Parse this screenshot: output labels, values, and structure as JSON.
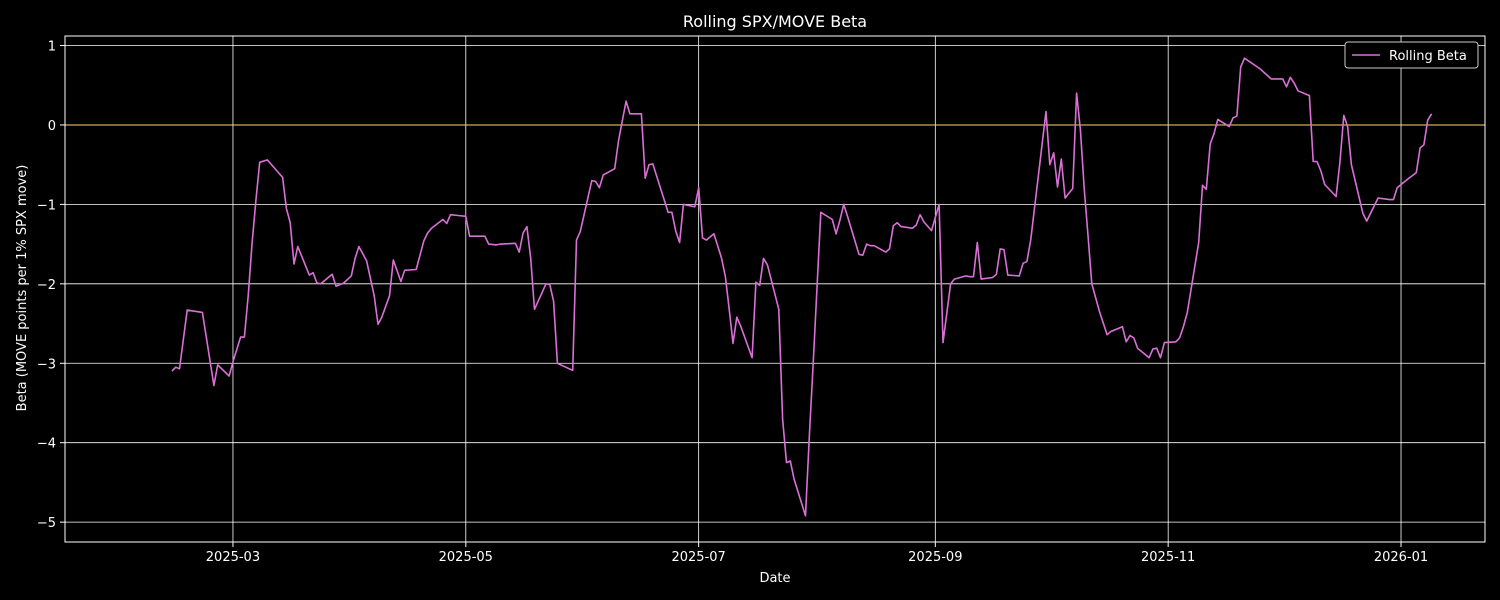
{
  "chart_data": {
    "type": "line",
    "title": "Rolling SPX/MOVE Beta",
    "xlabel": "Date",
    "ylabel": "Beta (MOVE points per 1% SPX move)",
    "xlim": [
      "2025-01-16",
      "2026-01-23"
    ],
    "ylim": [
      -5.25,
      1.12
    ],
    "x_ticks": [
      {
        "date": "2025-03-01",
        "label": "2025-03"
      },
      {
        "date": "2025-05-01",
        "label": "2025-05"
      },
      {
        "date": "2025-07-01",
        "label": "2025-07"
      },
      {
        "date": "2025-09-01",
        "label": "2025-09"
      },
      {
        "date": "2025-11-01",
        "label": "2025-11"
      },
      {
        "date": "2026-01-01",
        "label": "2026-01"
      }
    ],
    "y_ticks": [
      {
        "value": 1,
        "label": "1"
      },
      {
        "value": 0,
        "label": "0"
      },
      {
        "value": -1,
        "label": "−1"
      },
      {
        "value": -2,
        "label": "−2"
      },
      {
        "value": -3,
        "label": "−3"
      },
      {
        "value": -4,
        "label": "−4"
      },
      {
        "value": -5,
        "label": "−5"
      }
    ],
    "grid": true,
    "zero_line": {
      "value": 0,
      "color": "#ffd966"
    },
    "legend": {
      "position": "top-right",
      "entries": [
        "Rolling Beta"
      ]
    },
    "series": [
      {
        "name": "Rolling Beta",
        "color": "#da70d6",
        "x": [
          "2025-02-13",
          "2025-02-14",
          "2025-02-15",
          "2025-02-17",
          "2025-02-21",
          "2025-02-24",
          "2025-02-25",
          "2025-02-28",
          "2025-03-01",
          "2025-03-03",
          "2025-03-04",
          "2025-03-05",
          "2025-03-06",
          "2025-03-07",
          "2025-03-08",
          "2025-03-10",
          "2025-03-14",
          "2025-03-15",
          "2025-03-16",
          "2025-03-17",
          "2025-03-18",
          "2025-03-21",
          "2025-03-22",
          "2025-03-23",
          "2025-03-24",
          "2025-03-27",
          "2025-03-28",
          "2025-03-30",
          "2025-04-01",
          "2025-04-02",
          "2025-04-03",
          "2025-04-05",
          "2025-04-07",
          "2025-04-08",
          "2025-04-09",
          "2025-04-11",
          "2025-04-12",
          "2025-04-14",
          "2025-04-15",
          "2025-04-18",
          "2025-04-20",
          "2025-04-21",
          "2025-04-22",
          "2025-04-25",
          "2025-04-26",
          "2025-04-27",
          "2025-04-29",
          "2025-05-01",
          "2025-05-02",
          "2025-05-06",
          "2025-05-07",
          "2025-05-09",
          "2025-05-10",
          "2025-05-14",
          "2025-05-15",
          "2025-05-16",
          "2025-05-17",
          "2025-05-18",
          "2025-05-19",
          "2025-05-22",
          "2025-05-23",
          "2025-05-24",
          "2025-05-25",
          "2025-05-29",
          "2025-05-30",
          "2025-05-31",
          "2025-06-03",
          "2025-06-04",
          "2025-06-05",
          "2025-06-06",
          "2025-06-09",
          "2025-06-10",
          "2025-06-11",
          "2025-06-12",
          "2025-06-13",
          "2025-06-16",
          "2025-06-17",
          "2025-06-18",
          "2025-06-19",
          "2025-06-23",
          "2025-06-24",
          "2025-06-25",
          "2025-06-26",
          "2025-06-27",
          "2025-06-30",
          "2025-07-01",
          "2025-07-02",
          "2025-07-03",
          "2025-07-05",
          "2025-07-07",
          "2025-07-08",
          "2025-07-09",
          "2025-07-10",
          "2025-07-11",
          "2025-07-12",
          "2025-07-15",
          "2025-07-16",
          "2025-07-17",
          "2025-07-18",
          "2025-07-19",
          "2025-07-22",
          "2025-07-23",
          "2025-07-24",
          "2025-07-25",
          "2025-07-26",
          "2025-07-29",
          "2025-07-30",
          "2025-07-31",
          "2025-08-02",
          "2025-08-05",
          "2025-08-06",
          "2025-08-07",
          "2025-08-08",
          "2025-08-09",
          "2025-08-12",
          "2025-08-13",
          "2025-08-14",
          "2025-08-15",
          "2025-08-16",
          "2025-08-19",
          "2025-08-20",
          "2025-08-21",
          "2025-08-22",
          "2025-08-23",
          "2025-08-26",
          "2025-08-27",
          "2025-08-28",
          "2025-08-29",
          "2025-08-31",
          "2025-09-02",
          "2025-09-03",
          "2025-09-05",
          "2025-09-06",
          "2025-09-09",
          "2025-09-10",
          "2025-09-11",
          "2025-09-12",
          "2025-09-13",
          "2025-09-16",
          "2025-09-17",
          "2025-09-18",
          "2025-09-19",
          "2025-09-20",
          "2025-09-23",
          "2025-09-24",
          "2025-09-25",
          "2025-09-26",
          "2025-09-30",
          "2025-10-01",
          "2025-10-02",
          "2025-10-03",
          "2025-10-04",
          "2025-10-05",
          "2025-10-07",
          "2025-10-08",
          "2025-10-09",
          "2025-10-10",
          "2025-10-11",
          "2025-10-12",
          "2025-10-14",
          "2025-10-16",
          "2025-10-17",
          "2025-10-20",
          "2025-10-21",
          "2025-10-22",
          "2025-10-23",
          "2025-10-24",
          "2025-10-27",
          "2025-10-28",
          "2025-10-29",
          "2025-10-30",
          "2025-10-31",
          "2025-11-03",
          "2025-11-04",
          "2025-11-05",
          "2025-11-06",
          "2025-11-09",
          "2025-11-10",
          "2025-11-11",
          "2025-11-12",
          "2025-11-13",
          "2025-11-14",
          "2025-11-17",
          "2025-11-18",
          "2025-11-19",
          "2025-11-20",
          "2025-11-21",
          "2025-11-25",
          "2025-11-28",
          "2025-12-01",
          "2025-12-02",
          "2025-12-03",
          "2025-12-04",
          "2025-12-05",
          "2025-12-08",
          "2025-12-09",
          "2025-12-10",
          "2025-12-11",
          "2025-12-12",
          "2025-12-15",
          "2025-12-16",
          "2025-12-17",
          "2025-12-18",
          "2025-12-19",
          "2025-12-22",
          "2025-12-23",
          "2025-12-26",
          "2025-12-29",
          "2025-12-30",
          "2025-12-31",
          "2026-01-02",
          "2026-01-05",
          "2026-01-06",
          "2026-01-07",
          "2026-01-08",
          "2026-01-09"
        ],
        "values": [
          -3.1,
          -3.05,
          -3.07,
          -2.33,
          -2.36,
          -3.28,
          -3.02,
          -3.16,
          -2.98,
          -2.67,
          -2.67,
          -2.15,
          -1.5,
          -0.95,
          -0.47,
          -0.44,
          -0.66,
          -1.05,
          -1.23,
          -1.75,
          -1.53,
          -1.89,
          -1.86,
          -1.99,
          -2.0,
          -1.88,
          -2.03,
          -1.99,
          -1.9,
          -1.68,
          -1.53,
          -1.71,
          -2.15,
          -2.51,
          -2.42,
          -2.15,
          -1.7,
          -1.97,
          -1.83,
          -1.82,
          -1.46,
          -1.36,
          -1.3,
          -1.19,
          -1.24,
          -1.13,
          -1.14,
          -1.15,
          -1.4,
          -1.4,
          -1.5,
          -1.51,
          -1.5,
          -1.49,
          -1.6,
          -1.36,
          -1.28,
          -1.68,
          -2.32,
          -2.0,
          -2.01,
          -2.22,
          -3.0,
          -3.09,
          -1.45,
          -1.34,
          -0.7,
          -0.71,
          -0.79,
          -0.63,
          -0.55,
          -0.2,
          0.05,
          0.3,
          0.14,
          0.14,
          -0.67,
          -0.5,
          -0.49,
          -1.1,
          -1.1,
          -1.34,
          -1.48,
          -1.0,
          -1.03,
          -0.79,
          -1.42,
          -1.45,
          -1.37,
          -1.68,
          -1.91,
          -2.32,
          -2.75,
          -2.42,
          -2.53,
          -2.93,
          -1.98,
          -2.02,
          -1.68,
          -1.76,
          -2.32,
          -3.7,
          -4.25,
          -4.23,
          -4.46,
          -4.92,
          -3.9,
          -3.0,
          -1.1,
          -1.19,
          -1.37,
          -1.2,
          -1.0,
          -1.15,
          -1.63,
          -1.64,
          -1.5,
          -1.52,
          -1.52,
          -1.6,
          -1.56,
          -1.27,
          -1.23,
          -1.28,
          -1.3,
          -1.26,
          -1.13,
          -1.22,
          -1.33,
          -1.0,
          -2.74,
          -2.0,
          -1.94,
          -1.9,
          -1.91,
          -1.91,
          -1.48,
          -1.94,
          -1.92,
          -1.88,
          -1.56,
          -1.57,
          -1.89,
          -1.9,
          -1.74,
          -1.72,
          -1.44,
          0.17,
          -0.5,
          -0.35,
          -0.78,
          -0.43,
          -0.92,
          -0.8,
          0.4,
          -0.06,
          -0.8,
          -1.39,
          -2.0,
          -2.35,
          -2.64,
          -2.6,
          -2.54,
          -2.73,
          -2.65,
          -2.68,
          -2.81,
          -2.93,
          -2.82,
          -2.81,
          -2.93,
          -2.74,
          -2.73,
          -2.68,
          -2.54,
          -2.36,
          -1.48,
          -0.76,
          -0.81,
          -0.24,
          -0.11,
          0.07,
          -0.02,
          0.09,
          0.11,
          0.73,
          0.84,
          0.71,
          0.58,
          0.58,
          0.48,
          0.6,
          0.53,
          0.43,
          0.37,
          -0.46,
          -0.46,
          -0.58,
          -0.75,
          -0.9,
          -0.47,
          0.12,
          -0.02,
          -0.5,
          -1.11,
          -1.21,
          -0.92,
          -0.94,
          -0.94,
          -0.79,
          -0.71,
          -0.6,
          -0.29,
          -0.25,
          0.06,
          0.14
        ]
      }
    ]
  }
}
